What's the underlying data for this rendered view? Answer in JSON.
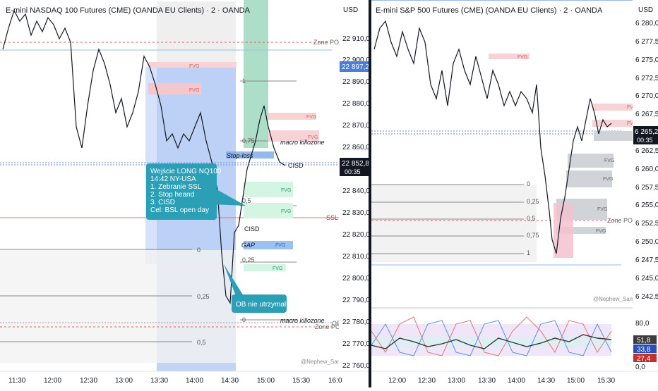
{
  "left_chart": {
    "title": "E-mini NASDAQ 100 Futures (CME) (OANDA EU Clients) · 2 · OANDA",
    "currency": "USD",
    "price_ticks": [
      "22 910,0",
      "22 900,0",
      "22 890,0",
      "22 880,0",
      "22 870,0",
      "22 860,0",
      "22 840,0",
      "22 830,0",
      "22 820,0",
      "22 810,0",
      "22 800,0",
      "22 790,0",
      "22 780,0",
      "22 770,0",
      "22 760,0"
    ],
    "price_labels": {
      "top": "22 897,2",
      "current": "22 852,8",
      "countdown": "00:35"
    },
    "time_ticks": [
      "11:30",
      "12:00",
      "12:30",
      "13:00",
      "13:30",
      "14:00",
      "14:30",
      "15:00",
      "15:30",
      "16:0"
    ],
    "annotations": {
      "zone_poi_top": "Zone POI",
      "zone_poi_bottom": "Zone POI",
      "ssl": "SSL",
      "ob": "OB",
      "stop_loss": "Stop-loss",
      "macro_killzone_top": "macro killozone",
      "macro_killzone_bottom": "macro killozone",
      "cisd_1": "CISD",
      "cisd_2": "CISD",
      "gap": "GAP",
      "fvg": "FVG",
      "watermark": "@Nephew_Sam_"
    },
    "fib_levels": [
      "1",
      "0,75",
      "0,5",
      "0,25",
      "0",
      "0,25",
      "0",
      "0,25",
      "0,5"
    ],
    "entry_note": {
      "lines": [
        "Wejście LONG NQ100",
        "14:42 NY-USA",
        "1. Zebranie SSL",
        "2. Stop heand",
        "3. CISD",
        "Cel: BSL open day"
      ]
    },
    "ob_note": "OB nie utrzymał"
  },
  "right_chart": {
    "title": "E-mini S&P 500 Futures (CME) (OANDA EU Clients) · 2 · OANDA",
    "currency": "USD",
    "price_ticks": [
      "6 280,0",
      "6 277,5",
      "6 275,0",
      "6 272,5",
      "6 270,0",
      "6 267,5",
      "6 262,5",
      "6 260,0",
      "6 257,5",
      "6 255,0",
      "6 252,5",
      "6 250,0",
      "6 247,5",
      "6 245,0",
      "6 242,5"
    ],
    "price_labels": {
      "current": "6 265,2",
      "countdown": "00:35"
    },
    "time_ticks": [
      "12:00",
      "12:30",
      "13:00",
      "13:30",
      "14:00",
      "14:30",
      "15:00",
      "15:30"
    ],
    "annotations": {
      "zone_poi": "Zone POI",
      "fvg": "FVG",
      "fv": "FV",
      "watermark": "@Nephew_Sam_"
    },
    "fib_levels": [
      "0",
      "0,25",
      "0,5",
      "0,75",
      "1"
    ],
    "oscillator": {
      "ticks": [
        "80,0",
        "0,0"
      ],
      "values": {
        "v1": "51,8",
        "v2": "33,8",
        "v3": "27,4"
      }
    }
  },
  "colors": {
    "blue_box": "#b3cdf7",
    "green_box": "#a4dcc5",
    "fvg_red": "#f7c6c9",
    "fvg_green": "#d2f5e2",
    "note_bg": "#2a9fb6",
    "red_label": "#c2302f",
    "dark_label": "#131722"
  }
}
